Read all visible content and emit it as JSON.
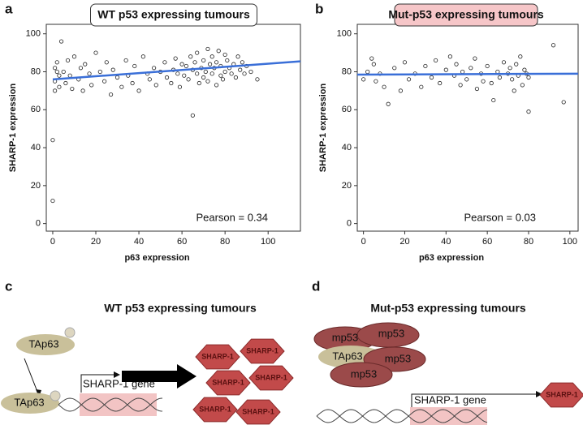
{
  "chart_data": [
    {
      "type": "scatter",
      "label": "a",
      "title": "WT p53 expressing tumours",
      "x_label": "p63 expression",
      "y_label": "SHARP-1 expression",
      "annotation": "Pearson = 0.34",
      "xlim": [
        -3,
        115
      ],
      "ylim": [
        -4,
        105
      ],
      "xticks": [
        0,
        20,
        40,
        60,
        80,
        100
      ],
      "yticks": [
        0,
        20,
        40,
        60,
        80,
        100
      ],
      "grid": false,
      "point_color": "#222222",
      "fit_color": "#3a6fd8",
      "x": [
        0,
        0,
        1,
        1,
        1,
        2,
        2,
        3,
        3,
        4,
        5,
        6,
        7,
        8,
        9,
        10,
        12,
        13,
        14,
        15,
        17,
        18,
        20,
        22,
        24,
        25,
        27,
        28,
        30,
        32,
        34,
        35,
        37,
        38,
        40,
        42,
        44,
        45,
        47,
        48,
        50,
        52,
        53,
        55,
        56,
        57,
        58,
        59,
        60,
        61,
        62,
        63,
        64,
        65,
        65,
        66,
        67,
        67,
        68,
        69,
        70,
        70,
        71,
        72,
        72,
        73,
        74,
        74,
        75,
        76,
        76,
        77,
        78,
        78,
        79,
        80,
        80,
        81,
        82,
        83,
        84,
        85,
        86,
        87,
        88,
        89,
        90,
        92,
        95
      ],
      "y": [
        44,
        12,
        75,
        82,
        70,
        80,
        85,
        72,
        78,
        96,
        80,
        74,
        86,
        78,
        71,
        88,
        76,
        82,
        70,
        84,
        79,
        73,
        90,
        80,
        75,
        85,
        68,
        81,
        77,
        72,
        86,
        78,
        74,
        83,
        70,
        88,
        79,
        76,
        82,
        73,
        80,
        85,
        77,
        74,
        81,
        87,
        79,
        72,
        84,
        78,
        83,
        76,
        88,
        81,
        57,
        85,
        79,
        90,
        74,
        82,
        86,
        77,
        80,
        92,
        75,
        84,
        79,
        88,
        82,
        73,
        85,
        91,
        78,
        83,
        76,
        89,
        80,
        86,
        82,
        79,
        84,
        77,
        88,
        81,
        85,
        79,
        83,
        80,
        76
      ],
      "fit": {
        "x": [
          0,
          115
        ],
        "y": [
          76,
          85.5
        ]
      }
    },
    {
      "type": "scatter",
      "label": "b",
      "title": "Mut-p53 expressing tumours",
      "x_label": "p63 expression",
      "y_label": "SHARP-1 expression",
      "annotation": "Pearson = 0.03",
      "xlim": [
        -3,
        104
      ],
      "ylim": [
        -4,
        105
      ],
      "xticks": [
        0,
        20,
        40,
        60,
        80,
        100
      ],
      "yticks": [
        0,
        20,
        40,
        60,
        80,
        100
      ],
      "grid": false,
      "point_color": "#222222",
      "fit_color": "#3a6fd8",
      "x": [
        0,
        2,
        4,
        5,
        6,
        8,
        10,
        12,
        15,
        18,
        20,
        22,
        25,
        28,
        30,
        33,
        35,
        37,
        40,
        42,
        44,
        45,
        47,
        48,
        50,
        52,
        54,
        55,
        57,
        58,
        60,
        62,
        63,
        65,
        66,
        68,
        70,
        71,
        72,
        73,
        74,
        75,
        76,
        77,
        78,
        79,
        80,
        80,
        92,
        97
      ],
      "y": [
        76,
        80,
        87,
        84,
        75,
        79,
        72,
        63,
        82,
        70,
        85,
        76,
        79,
        72,
        83,
        77,
        86,
        74,
        81,
        88,
        78,
        84,
        73,
        80,
        76,
        82,
        87,
        71,
        79,
        75,
        83,
        74,
        65,
        80,
        77,
        85,
        79,
        82,
        76,
        70,
        84,
        78,
        88,
        73,
        81,
        79,
        59,
        77,
        94,
        64
      ],
      "fit": {
        "x": [
          -3,
          104
        ],
        "y": [
          78.5,
          79
        ]
      }
    }
  ],
  "panels": {
    "c": {
      "letter": "c",
      "title": "WT p53 expressing tumours",
      "protein_top": "TAp63",
      "protein_bound": "TAp63",
      "gene": "SHARP-1 gene",
      "products": [
        "SHARP-1",
        "SHARP-1",
        "SHARP-1",
        "SHARP-1",
        "SHARP-1",
        "SHARP-1"
      ]
    },
    "d": {
      "letter": "d",
      "title": "Mut-p53 expressing tumours",
      "mutants": [
        "mp53",
        "mp53",
        "mp53",
        "mp53"
      ],
      "protein": "TAp63",
      "gene": "SHARP-1 gene",
      "product": "SHARP-1"
    }
  }
}
